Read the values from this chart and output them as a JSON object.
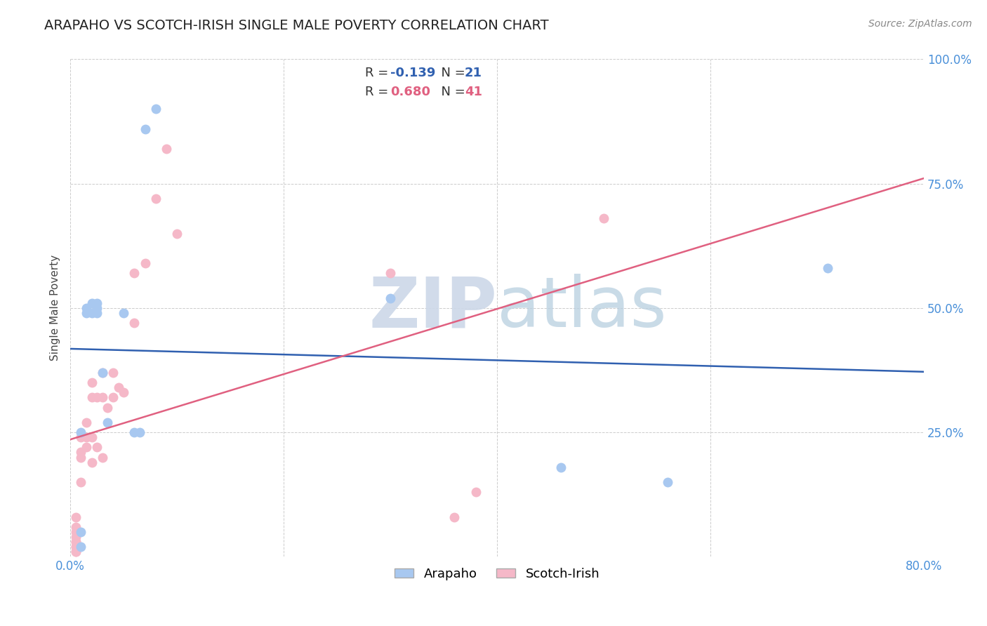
{
  "title": "ARAPAHO VS SCOTCH-IRISH SINGLE MALE POVERTY CORRELATION CHART",
  "source": "Source: ZipAtlas.com",
  "ylabel": "Single Male Poverty",
  "xlim": [
    0.0,
    0.8
  ],
  "ylim": [
    0.0,
    1.0
  ],
  "arapaho_color": "#a8c8f0",
  "scotch_irish_color": "#f5b8c8",
  "arapaho_line_color": "#3060b0",
  "scotch_irish_line_color": "#e06080",
  "R_arapaho": -0.139,
  "N_arapaho": 21,
  "R_scotch_irish": 0.68,
  "N_scotch_irish": 41,
  "arapaho_x": [
    0.01,
    0.01,
    0.01,
    0.015,
    0.015,
    0.02,
    0.02,
    0.025,
    0.025,
    0.025,
    0.03,
    0.035,
    0.05,
    0.06,
    0.065,
    0.07,
    0.08,
    0.3,
    0.46,
    0.56,
    0.71
  ],
  "arapaho_y": [
    0.02,
    0.05,
    0.25,
    0.49,
    0.5,
    0.49,
    0.51,
    0.49,
    0.5,
    0.51,
    0.37,
    0.27,
    0.49,
    0.25,
    0.25,
    0.86,
    0.9,
    0.52,
    0.18,
    0.15,
    0.58
  ],
  "scotch_irish_x": [
    0.005,
    0.005,
    0.005,
    0.005,
    0.005,
    0.005,
    0.005,
    0.005,
    0.005,
    0.005,
    0.01,
    0.01,
    0.01,
    0.01,
    0.015,
    0.015,
    0.015,
    0.02,
    0.02,
    0.02,
    0.02,
    0.025,
    0.025,
    0.03,
    0.03,
    0.03,
    0.035,
    0.04,
    0.04,
    0.045,
    0.05,
    0.06,
    0.06,
    0.07,
    0.08,
    0.09,
    0.1,
    0.3,
    0.36,
    0.38,
    0.5
  ],
  "scotch_irish_y": [
    0.01,
    0.01,
    0.02,
    0.02,
    0.03,
    0.03,
    0.04,
    0.05,
    0.06,
    0.08,
    0.15,
    0.2,
    0.21,
    0.24,
    0.22,
    0.24,
    0.27,
    0.19,
    0.24,
    0.32,
    0.35,
    0.22,
    0.32,
    0.2,
    0.32,
    0.37,
    0.3,
    0.32,
    0.37,
    0.34,
    0.33,
    0.47,
    0.57,
    0.59,
    0.72,
    0.82,
    0.65,
    0.57,
    0.08,
    0.13,
    0.68
  ],
  "background_color": "#ffffff",
  "watermark_zip": "ZIP",
  "watermark_atlas": "atlas",
  "watermark_color_zip": "#c8d8e8",
  "watermark_color_atlas": "#b8cfe8",
  "grid_color": "#cccccc",
  "title_fontsize": 14,
  "axis_label_fontsize": 11,
  "tick_fontsize": 12,
  "legend_fontsize": 13,
  "source_fontsize": 10
}
